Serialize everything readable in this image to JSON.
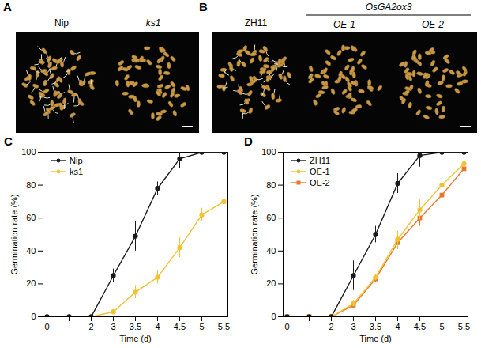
{
  "photo_panels": [
    {
      "panel": "A",
      "labels": [
        "Nip",
        "ks1"
      ]
    },
    {
      "panel": "B",
      "labels": [
        "ZH11",
        "OE-1",
        "OE-2"
      ],
      "group_label": "OsGA2ox3"
    }
  ],
  "chart_data": [
    {
      "type": "line",
      "panel": "C",
      "x_label": "Time (d)",
      "y_label": "Germination rate (%)",
      "categories": [
        "0",
        null,
        "2",
        "3",
        "3.5",
        "4",
        "4.5",
        "5",
        "5.5"
      ],
      "ylim": [
        0,
        100
      ],
      "yticks": [
        0,
        20,
        40,
        60,
        80,
        100
      ],
      "grid": false,
      "legend": "top-left",
      "series": [
        {
          "name": "Nip",
          "color": "#1a1a1a",
          "marker": "circle",
          "values": [
            0,
            0,
            0,
            25,
            49,
            78,
            96,
            100,
            100
          ],
          "errors": [
            0,
            0,
            0,
            4,
            9,
            4,
            6,
            0,
            0
          ]
        },
        {
          "name": "ks1",
          "color": "#f2c230",
          "marker": "circle",
          "values": [
            0,
            0,
            0,
            3,
            15,
            24,
            42,
            62,
            70
          ],
          "errors": [
            0,
            0,
            0,
            1,
            4,
            4,
            6,
            4,
            7
          ]
        }
      ]
    },
    {
      "type": "line",
      "panel": "D",
      "x_label": "Time (d)",
      "y_label": "Germination rate (%)",
      "categories": [
        "0",
        null,
        "2",
        "3",
        "3.5",
        "4",
        "4.5",
        "5",
        "5.5"
      ],
      "ylim": [
        0,
        100
      ],
      "yticks": [
        0,
        20,
        40,
        60,
        80,
        100
      ],
      "grid": false,
      "legend": "top-left",
      "series": [
        {
          "name": "ZH11",
          "color": "#1a1a1a",
          "marker": "circle",
          "values": [
            0,
            0,
            0,
            25,
            50,
            81,
            98,
            100,
            100
          ],
          "errors": [
            0,
            0,
            0,
            9,
            5,
            6,
            7,
            0,
            0
          ]
        },
        {
          "name": "OE-1",
          "color": "#f2c230",
          "marker": "circle",
          "values": [
            0,
            0,
            0,
            8,
            24,
            47,
            65,
            80,
            93
          ],
          "errors": [
            0,
            0,
            0,
            2,
            2,
            5,
            6,
            5,
            5
          ]
        },
        {
          "name": "OE-2",
          "color": "#e8772e",
          "marker": "square",
          "values": [
            0,
            0,
            0,
            7,
            23,
            45,
            60,
            74,
            90
          ],
          "errors": [
            0,
            0,
            0,
            2,
            2,
            4,
            5,
            4,
            3
          ]
        }
      ]
    }
  ]
}
